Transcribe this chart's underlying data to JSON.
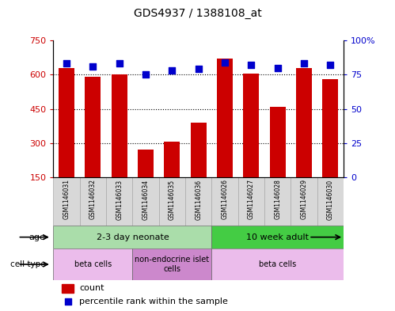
{
  "title": "GDS4937 / 1388108_at",
  "samples": [
    "GSM1146031",
    "GSM1146032",
    "GSM1146033",
    "GSM1146034",
    "GSM1146035",
    "GSM1146036",
    "GSM1146026",
    "GSM1146027",
    "GSM1146028",
    "GSM1146029",
    "GSM1146030"
  ],
  "counts": [
    630,
    590,
    600,
    270,
    305,
    390,
    670,
    605,
    460,
    630,
    580
  ],
  "percentiles": [
    83,
    81,
    83,
    75,
    78,
    79,
    84,
    82,
    80,
    83,
    82
  ],
  "ylim_left": [
    150,
    750
  ],
  "ylim_right": [
    0,
    100
  ],
  "yticks_left": [
    150,
    300,
    450,
    600,
    750
  ],
  "yticks_right": [
    0,
    25,
    50,
    75,
    100
  ],
  "ytick_labels_right": [
    "0",
    "25",
    "50",
    "75",
    "100%"
  ],
  "bar_color": "#cc0000",
  "dot_color": "#0000cc",
  "plot_bg": "#ffffff",
  "gridlines": [
    300,
    450,
    600
  ],
  "age_groups": [
    {
      "label": "2-3 day neonate",
      "start": 0,
      "end": 6,
      "color": "#aaddaa"
    },
    {
      "label": "10 week adult",
      "start": 6,
      "end": 11,
      "color": "#44cc44"
    }
  ],
  "cell_type_groups": [
    {
      "label": "beta cells",
      "start": 0,
      "end": 3,
      "color": "#ebbceb"
    },
    {
      "label": "non-endocrine islet\ncells",
      "start": 3,
      "end": 6,
      "color": "#cc88cc"
    },
    {
      "label": "beta cells",
      "start": 6,
      "end": 11,
      "color": "#ebbceb"
    }
  ],
  "legend_items": [
    {
      "color": "#cc0000",
      "label": "count"
    },
    {
      "color": "#0000cc",
      "label": "percentile rank within the sample"
    }
  ]
}
